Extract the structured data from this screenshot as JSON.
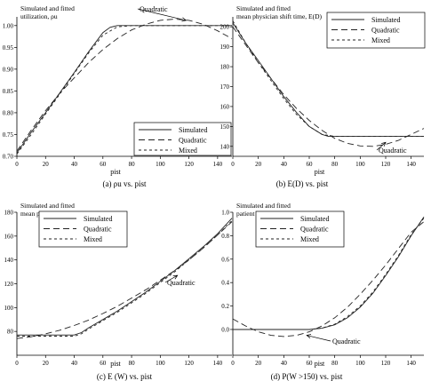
{
  "chart_data": [
    {
      "type": "line",
      "title": "Simulated and fitted\nutilization, ρu",
      "xlabel": "pist",
      "caption": "(a) ρu vs. pist",
      "xlim": [
        0,
        150
      ],
      "ylim": [
        0.7,
        1.02
      ],
      "xticks": [
        0,
        20,
        40,
        60,
        80,
        100,
        120,
        140
      ],
      "yticks": [
        0.7,
        0.75,
        0.8,
        0.85,
        0.9,
        0.95,
        1.0
      ],
      "ytick_labels": [
        "0.70",
        "0.75",
        "0.80",
        "0.85",
        "0.90",
        "0.95",
        "1.00"
      ],
      "legend": {
        "position": "bottom-right",
        "entries": [
          "Simulated",
          "Quadratic",
          "Mixed"
        ]
      },
      "annotation": {
        "text": "Quadratic",
        "arrow_to": [
          118,
          1.012
        ]
      },
      "series": [
        {
          "name": "Simulated",
          "style": "solid",
          "x": [
            0,
            10,
            20,
            30,
            40,
            50,
            60,
            65,
            70,
            80,
            100,
            120,
            150
          ],
          "y": [
            0.708,
            0.755,
            0.8,
            0.846,
            0.892,
            0.94,
            0.984,
            0.996,
            1.0,
            1.0,
            1.0,
            1.0,
            1.0
          ]
        },
        {
          "name": "Quadratic",
          "style": "longdash",
          "x": [
            0,
            10,
            20,
            30,
            40,
            50,
            60,
            70,
            80,
            90,
            100,
            110,
            120,
            130,
            140,
            150
          ],
          "y": [
            0.712,
            0.76,
            0.805,
            0.845,
            0.88,
            0.915,
            0.945,
            0.97,
            0.99,
            1.003,
            1.012,
            1.015,
            1.012,
            1.003,
            0.988,
            0.97
          ]
        },
        {
          "name": "Mixed",
          "style": "shortdash",
          "x": [
            0,
            10,
            20,
            30,
            40,
            50,
            60,
            70,
            80,
            100,
            150
          ],
          "y": [
            0.705,
            0.75,
            0.797,
            0.843,
            0.89,
            0.937,
            0.978,
            0.997,
            1.0,
            1.0,
            1.0
          ]
        }
      ]
    },
    {
      "type": "line",
      "title": "Simulated and fitted\nmean physician shift time, E(D)",
      "xlabel": "pist",
      "caption": "(b) E(D) vs. pist",
      "xlim": [
        0,
        150
      ],
      "ylim": [
        135,
        205
      ],
      "xticks": [
        0,
        20,
        40,
        60,
        80,
        100,
        120,
        140
      ],
      "yticks": [
        140,
        150,
        160,
        170,
        180,
        190,
        200
      ],
      "ytick_labels": [
        "140",
        "150",
        "160",
        "170",
        "180",
        "190",
        "200"
      ],
      "legend": {
        "position": "top-right",
        "entries": [
          "Simulated",
          "Quadratic",
          "Mixed"
        ]
      },
      "annotation": {
        "text": "Quadratic",
        "arrow_to": [
          120,
          142
        ]
      },
      "series": [
        {
          "name": "Simulated",
          "style": "solid",
          "x": [
            0,
            10,
            20,
            30,
            40,
            50,
            60,
            70,
            75,
            80,
            100,
            150
          ],
          "y": [
            202,
            192,
            183,
            174,
            165,
            157,
            150,
            146,
            145,
            145,
            145,
            145
          ]
        },
        {
          "name": "Quadratic",
          "style": "longdash",
          "x": [
            0,
            10,
            20,
            30,
            40,
            50,
            60,
            70,
            80,
            90,
            100,
            110,
            120,
            130,
            140,
            150
          ],
          "y": [
            200,
            191,
            182,
            174,
            166,
            159,
            153,
            148,
            144,
            141.5,
            140.2,
            140,
            141,
            143,
            146,
            149
          ]
        },
        {
          "name": "Mixed",
          "style": "shortdash",
          "x": [
            0,
            10,
            20,
            30,
            40,
            50,
            60,
            70,
            80,
            100,
            150
          ],
          "y": [
            203,
            192,
            182,
            173,
            164,
            156,
            150,
            146,
            145,
            145,
            145
          ]
        }
      ]
    },
    {
      "type": "line",
      "title": "Simulated and fitted\nmean patient wait time, E(W)",
      "xlabel": "pist",
      "caption": "(c) E (W) vs. pist",
      "xlim": [
        0,
        150
      ],
      "ylim": [
        60,
        180
      ],
      "xticks": [
        0,
        20,
        40,
        60,
        80,
        100,
        120,
        140
      ],
      "yticks": [
        80,
        100,
        120,
        140,
        160,
        180
      ],
      "ytick_labels": [
        "80",
        "100",
        "120",
        "140",
        "160",
        "180"
      ],
      "legend": {
        "position": "top-left",
        "entries": [
          "Simulated",
          "Quadratic",
          "Mixed"
        ]
      },
      "annotation": {
        "text": "Quadratic",
        "arrow_to": [
          112,
          127
        ]
      },
      "series": [
        {
          "name": "Simulated",
          "style": "solid",
          "x": [
            0,
            20,
            40,
            45,
            50,
            60,
            70,
            80,
            90,
            100,
            110,
            120,
            130,
            140,
            150
          ],
          "y": [
            77,
            77,
            77,
            79,
            83,
            90,
            97,
            105,
            113,
            122,
            131,
            141,
            151,
            162,
            175
          ]
        },
        {
          "name": "Quadratic",
          "style": "longdash",
          "x": [
            0,
            10,
            20,
            30,
            40,
            50,
            60,
            70,
            80,
            90,
            100,
            110,
            120,
            130,
            140,
            150
          ],
          "y": [
            74,
            75.5,
            78,
            81,
            85,
            89.5,
            95,
            101,
            108,
            115,
            123,
            131,
            140,
            150,
            161,
            172
          ]
        },
        {
          "name": "Mixed",
          "style": "shortdash",
          "x": [
            0,
            20,
            40,
            45,
            50,
            60,
            70,
            80,
            90,
            100,
            110,
            120,
            130,
            140,
            150
          ],
          "y": [
            76,
            76,
            76,
            78,
            82,
            89,
            96,
            104,
            112,
            121,
            130,
            140,
            150,
            161,
            173
          ]
        }
      ]
    },
    {
      "type": "line",
      "title": "Simulated and fitted\npatient prolonged wait rate, P(W >150)",
      "xlabel": "pist",
      "caption": "(d) P(W >150) vs. pist",
      "xlim": [
        0,
        150
      ],
      "ylim": [
        -0.22,
        1.0
      ],
      "xticks": [
        0,
        20,
        40,
        60,
        80,
        100,
        120,
        140
      ],
      "yticks": [
        0.0,
        0.2,
        0.4,
        0.6,
        0.8,
        1.0
      ],
      "ytick_labels": [
        "0.0",
        "0.2",
        "0.4",
        "0.6",
        "0.8",
        "1.0"
      ],
      "legend": {
        "position": "top-left",
        "entries": [
          "Simulated",
          "Quadratic",
          "Mixed"
        ]
      },
      "annotation": {
        "text": "Quadratic",
        "arrow_to": [
          58,
          -0.05
        ]
      },
      "series": [
        {
          "name": "Simulated",
          "style": "solid",
          "x": [
            0,
            20,
            40,
            60,
            70,
            80,
            90,
            100,
            110,
            120,
            130,
            140,
            150
          ],
          "y": [
            0,
            0,
            0,
            0,
            0.01,
            0.04,
            0.1,
            0.19,
            0.31,
            0.46,
            0.62,
            0.8,
            0.96
          ]
        },
        {
          "name": "Quadratic",
          "style": "longdash",
          "x": [
            0,
            10,
            20,
            30,
            40,
            50,
            60,
            70,
            80,
            90,
            100,
            110,
            120,
            130,
            140,
            150
          ],
          "y": [
            0.09,
            0.03,
            -0.02,
            -0.05,
            -0.06,
            -0.05,
            -0.02,
            0.03,
            0.1,
            0.19,
            0.3,
            0.42,
            0.55,
            0.69,
            0.83,
            0.92
          ]
        },
        {
          "name": "Mixed",
          "style": "shortdash",
          "x": [
            0,
            20,
            40,
            60,
            70,
            80,
            90,
            100,
            110,
            120,
            130,
            140,
            150
          ],
          "y": [
            0,
            0,
            0,
            0,
            0.012,
            0.045,
            0.11,
            0.2,
            0.32,
            0.47,
            0.63,
            0.81,
            0.95
          ]
        }
      ]
    }
  ]
}
